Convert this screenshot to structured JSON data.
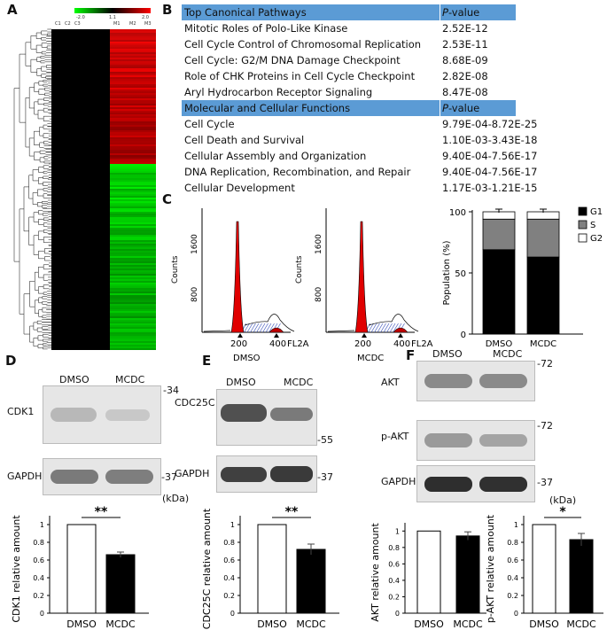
{
  "panels": {
    "A": "A",
    "B": "B",
    "C": "C",
    "D": "D",
    "E": "E",
    "F": "F"
  },
  "heatmap": {
    "scale_min": "-2.0",
    "scale_mid": "1.1",
    "scale_max": "2.0",
    "columns": [
      "C1",
      "C2",
      "C3",
      "M1",
      "M2",
      "M3"
    ]
  },
  "table": {
    "rows": [
      {
        "label": "Top Canonical Pathways",
        "value": "P-value",
        "header": true
      },
      {
        "label": "Mitotic Roles of Polo-Like Kinase",
        "value": "2.52E-12"
      },
      {
        "label": "Cell Cycle Control of Chromosomal Replication",
        "value": "2.53E-11"
      },
      {
        "label": "Cell Cycle: G2/M DNA Damage Checkpoint",
        "value": "8.68E-09"
      },
      {
        "label": "Role of CHK Proteins in Cell Cycle Checkpoint",
        "value": "2.82E-08"
      },
      {
        "label": "Aryl Hydrocarbon Receptor Signaling",
        "value": "8.47E-08"
      },
      {
        "label": "Molecular and Cellular Functions",
        "value": "P-value",
        "header": true
      },
      {
        "label": "Cell Cycle",
        "value": "9.79E-04-8.72E-25"
      },
      {
        "label": "Cell Death and Survival",
        "value": "1.10E-03-3.43E-18"
      },
      {
        "label": "Cellular Assembly and Organization",
        "value": "9.40E-04-7.56E-17"
      },
      {
        "label": "DNA Replication, Recombination, and Repair",
        "value": "9.40E-04-7.56E-17"
      },
      {
        "label": "Cellular Development",
        "value": "1.17E-03-1.21E-15"
      }
    ]
  },
  "flow": {
    "ylabel": "Counts",
    "yticks": [
      "800",
      "1600"
    ],
    "xticks": [
      "200",
      "400"
    ],
    "channel": "FL2A",
    "samples": [
      "DMSO",
      "MCDC"
    ]
  },
  "chart_data": [
    {
      "type": "bar",
      "stacked": true,
      "categories": [
        "DMSO",
        "MCDC"
      ],
      "series": [
        {
          "name": "G1",
          "values": [
            69,
            63
          ],
          "color": "#000000"
        },
        {
          "name": "S",
          "values": [
            25,
            31
          ],
          "color": "#808080"
        },
        {
          "name": "G2",
          "values": [
            6,
            6
          ],
          "color": "#ffffff"
        }
      ],
      "ylabel": "Population (%)",
      "ylim": [
        0,
        100
      ],
      "yticks": [
        0,
        50,
        100
      ],
      "legend": "right"
    },
    {
      "type": "bar",
      "categories": [
        "DMSO",
        "MCDC"
      ],
      "values": [
        1.0,
        0.66
      ],
      "errors": [
        0,
        0.03
      ],
      "colors": [
        "#ffffff",
        "#000000"
      ],
      "ylabel": "CDK1 relative amount",
      "ylim": [
        0,
        1.1
      ],
      "yticks": [
        "0",
        "0.2",
        "0.4",
        "0.6",
        "0.8",
        "1"
      ],
      "significance": "**"
    },
    {
      "type": "bar",
      "categories": [
        "DMSO",
        "MCDC"
      ],
      "values": [
        1.0,
        0.72
      ],
      "errors": [
        0,
        0.06
      ],
      "colors": [
        "#ffffff",
        "#000000"
      ],
      "ylabel": "CDC25C relative amount",
      "ylim": [
        0,
        1.1
      ],
      "yticks": [
        "0",
        "0.2",
        "0.4",
        "0.6",
        "0.8",
        "1"
      ],
      "significance": "**"
    },
    {
      "type": "bar",
      "categories": [
        "DMSO",
        "MCDC"
      ],
      "values": [
        1.0,
        0.94
      ],
      "errors": [
        0,
        0.05
      ],
      "colors": [
        "#ffffff",
        "#000000"
      ],
      "ylabel": "AKT relative amount",
      "ylim": [
        0,
        1.1
      ],
      "yticks": [
        "0",
        "0.2",
        "0.4",
        "0.6",
        "0.8",
        "1"
      ],
      "significance": ""
    },
    {
      "type": "bar",
      "categories": [
        "DMSO",
        "MCDC"
      ],
      "values": [
        1.0,
        0.83
      ],
      "errors": [
        0,
        0.07
      ],
      "colors": [
        "#ffffff",
        "#000000"
      ],
      "ylabel": "p-AKT relative amount",
      "ylim": [
        0,
        1.1
      ],
      "yticks": [
        "0",
        "0.2",
        "0.4",
        "0.6",
        "0.8",
        "1"
      ],
      "significance": "*"
    }
  ],
  "blots": {
    "lane_labels": [
      "DMSO",
      "MCDC"
    ],
    "unit": "(kDa)",
    "D": {
      "proteins": [
        "CDK1",
        "GAPDH"
      ],
      "markers": [
        "-34",
        "-37"
      ]
    },
    "E": {
      "proteins": [
        "CDC25C",
        "GAPDH"
      ],
      "markers": [
        "-55",
        "-37"
      ]
    },
    "F": {
      "proteins": [
        "AKT",
        "p-AKT",
        "GAPDH"
      ],
      "markers": [
        "-72",
        "-72",
        "-37"
      ]
    }
  }
}
